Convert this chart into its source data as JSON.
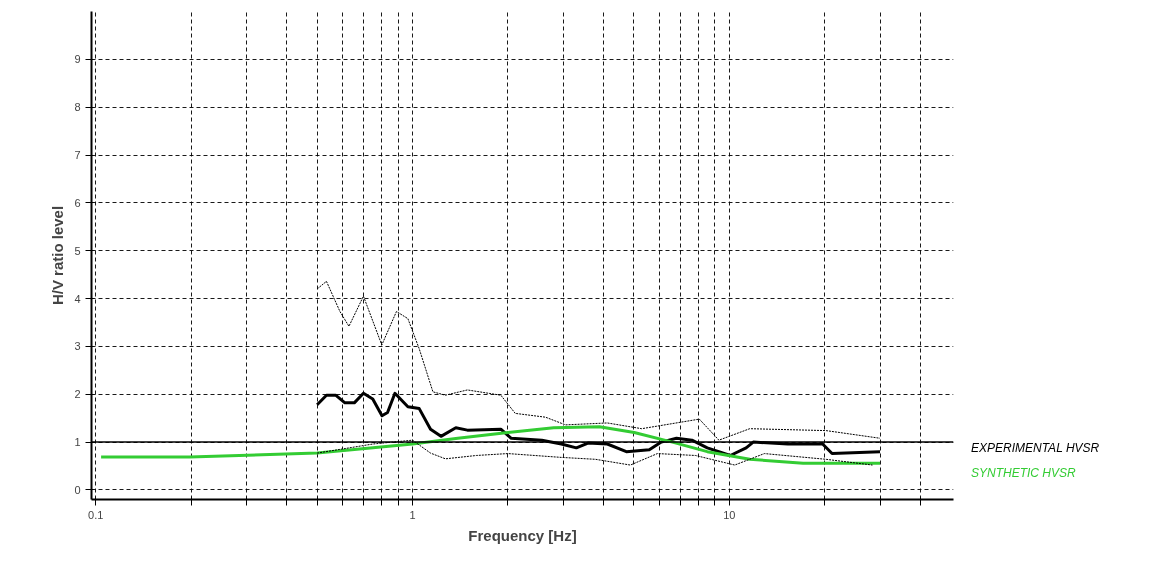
{
  "chart_data": {
    "type": "line",
    "xlabel": "Frequency [Hz]",
    "ylabel": "H/V ratio level",
    "log": "x",
    "grid": true,
    "marker": "none",
    "xlim": [
      0.097,
      51
    ],
    "ylim": [
      -0.2,
      10
    ],
    "xticks": [
      {
        "value": 0.1,
        "label": "0.1"
      },
      {
        "value": 0.2,
        "label": null
      },
      {
        "value": 0.3,
        "label": null
      },
      {
        "value": 0.4,
        "label": null
      },
      {
        "value": 0.5,
        "label": null
      },
      {
        "value": 0.6,
        "label": null
      },
      {
        "value": 0.7,
        "label": null
      },
      {
        "value": 0.8,
        "label": null
      },
      {
        "value": 0.9,
        "label": null
      },
      1,
      {
        "value": 2,
        "label": null
      },
      {
        "value": 3,
        "label": null
      },
      {
        "value": 4,
        "label": null
      },
      {
        "value": 5,
        "label": null
      },
      {
        "value": 6,
        "label": null
      },
      {
        "value": 7,
        "label": null
      },
      {
        "value": 8,
        "label": null
      },
      {
        "value": 9,
        "label": null
      },
      10,
      {
        "value": 20,
        "label": null
      },
      {
        "value": 30,
        "label": null
      },
      {
        "value": 40,
        "label": null
      }
    ],
    "yticks": [
      0,
      1,
      2,
      3,
      4,
      5,
      6,
      7,
      8,
      9
    ],
    "ref_lines": [
      {
        "axis": "y",
        "value": 1,
        "label": null,
        "color": "#000000",
        "line_style": "solid"
      }
    ],
    "series": [
      {
        "name": "EXPERIMENTAL HVSR",
        "color": "#000000",
        "line_style": "solid",
        "x": [
          0.5,
          0.535,
          0.572,
          0.612,
          0.655,
          0.7,
          0.749,
          0.801,
          0.834,
          0.88,
          0.967,
          1.05,
          1.14,
          1.23,
          1.37,
          1.49,
          1.9,
          2.05,
          2.56,
          2.95,
          3.29,
          3.58,
          4.12,
          4.73,
          5.59,
          6.1,
          6.81,
          7.62,
          8.52,
          10.07,
          11.3,
          11.9,
          15.3,
          19.7,
          21.1,
          29.9
        ],
        "values": [
          1.78,
          1.98,
          1.98,
          1.82,
          1.82,
          2.02,
          1.9,
          1.55,
          1.62,
          2.02,
          1.74,
          1.7,
          1.27,
          1.12,
          1.3,
          1.25,
          1.27,
          1.08,
          1.04,
          0.96,
          0.88,
          0.98,
          0.96,
          0.8,
          0.84,
          1.0,
          1.08,
          1.04,
          0.88,
          0.72,
          0.88,
          1.0,
          0.96,
          0.96,
          0.76,
          0.8
        ]
      },
      {
        "name": "SYNTHETIC HVSR",
        "color": "#33cc33",
        "line_style": "solid",
        "x": [
          0.104,
          0.198,
          0.5,
          0.75,
          1.0,
          1.39,
          2.0,
          2.79,
          3.89,
          5.01,
          6.61,
          8.52,
          11.6,
          17.1,
          29.9
        ],
        "values": [
          0.69,
          0.69,
          0.77,
          0.88,
          0.96,
          1.08,
          1.2,
          1.3,
          1.32,
          1.2,
          1.0,
          0.8,
          0.64,
          0.56,
          0.56
        ]
      },
      {
        "color": "#000000",
        "line_style": "dotted",
        "x": [
          0.5,
          0.535,
          0.59,
          0.63,
          0.7,
          0.8,
          0.89,
          0.967,
          1.05,
          1.16,
          1.27,
          1.49,
          1.9,
          2.11,
          2.63,
          3.04,
          4.12,
          5.29,
          8.04,
          9.27,
          11.6,
          20.2,
          29.9
        ],
        "values": [
          4.2,
          4.36,
          3.73,
          3.42,
          4.05,
          3.03,
          3.73,
          3.58,
          2.95,
          2.05,
          1.98,
          2.09,
          1.98,
          1.6,
          1.52,
          1.36,
          1.4,
          1.28,
          1.48,
          1.04,
          1.28,
          1.24,
          1.08
        ]
      },
      {
        "color": "#000000",
        "line_style": "dotted",
        "x": [
          0.5,
          0.75,
          1.0,
          1.14,
          1.27,
          1.59,
          2.0,
          2.95,
          3.78,
          4.87,
          5.93,
          7.82,
          10.4,
          12.9,
          20.2,
          28.3
        ],
        "values": [
          0.77,
          0.96,
          1.04,
          0.77,
          0.65,
          0.72,
          0.76,
          0.68,
          0.64,
          0.52,
          0.76,
          0.72,
          0.52,
          0.76,
          0.64,
          0.52
        ]
      }
    ]
  }
}
